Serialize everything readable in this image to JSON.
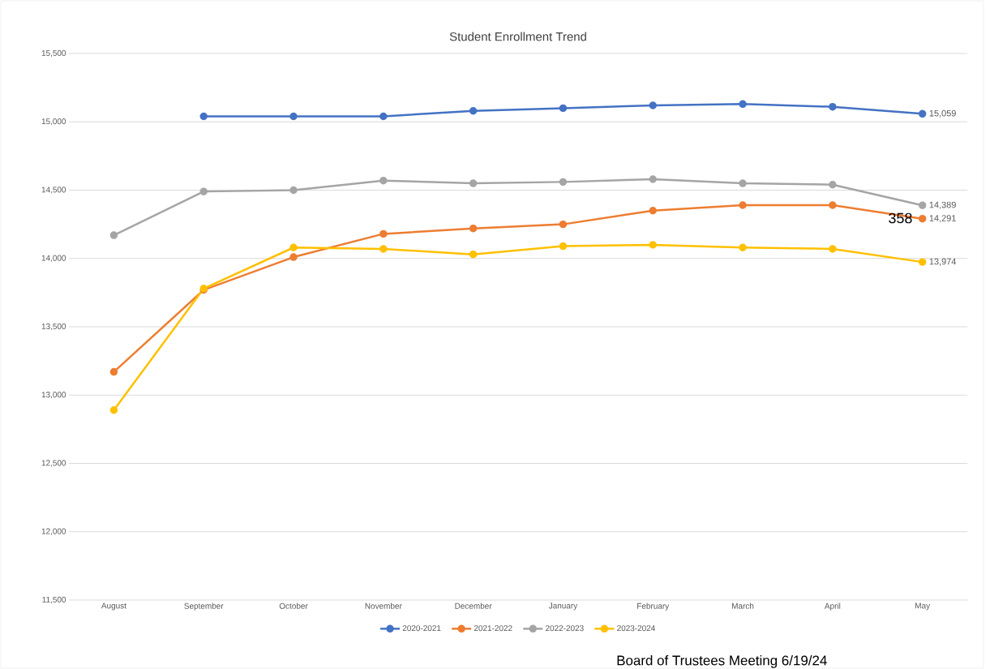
{
  "chart_data": {
    "type": "line",
    "title": "Student Enrollment Trend",
    "categories": [
      "August",
      "September",
      "October",
      "November",
      "December",
      "January",
      "February",
      "March",
      "April",
      "May"
    ],
    "series": [
      {
        "name": "2020-2021",
        "color": "#4472c4",
        "values": [
          null,
          15040,
          15040,
          15040,
          15080,
          15100,
          15120,
          15130,
          15110,
          15059
        ],
        "value_labels": [
          null,
          null,
          null,
          null,
          null,
          null,
          null,
          null,
          null,
          "15,059"
        ]
      },
      {
        "name": "2021-2022",
        "color": "#ed7d31",
        "values": [
          13170,
          13770,
          14010,
          14180,
          14220,
          14250,
          14350,
          14390,
          14390,
          14291
        ],
        "value_labels": [
          null,
          null,
          null,
          null,
          null,
          null,
          null,
          null,
          null,
          "14,291"
        ]
      },
      {
        "name": "2022-2023",
        "color": "#a5a5a5",
        "values": [
          14170,
          14490,
          14500,
          14570,
          14550,
          14560,
          14580,
          14550,
          14540,
          14389
        ],
        "value_labels": [
          null,
          null,
          null,
          null,
          null,
          null,
          null,
          null,
          null,
          "14,389"
        ]
      },
      {
        "name": "2023-2024",
        "color": "#ffc000",
        "values": [
          12890,
          13780,
          14080,
          14070,
          14030,
          14090,
          14100,
          14080,
          14070,
          13974
        ],
        "value_labels": [
          null,
          null,
          null,
          null,
          null,
          null,
          null,
          null,
          null,
          "13,974"
        ]
      }
    ],
    "ylim": [
      11500,
      15500
    ],
    "yticks": [
      {
        "value": 11500,
        "label": "11,500"
      },
      {
        "value": 12000,
        "label": "12,000"
      },
      {
        "value": 12500,
        "label": "12,500"
      },
      {
        "value": 13000,
        "label": "13,000"
      },
      {
        "value": 13500,
        "label": "13,500"
      },
      {
        "value": 14000,
        "label": "14,000"
      },
      {
        "value": 14500,
        "label": "14,500"
      },
      {
        "value": 15000,
        "label": "15,000"
      },
      {
        "value": 15500,
        "label": "15,500"
      }
    ],
    "grid": "y",
    "legend": "bottom",
    "marker": "circle",
    "line_style": "solid",
    "annotations": [
      "Board of Trustees Meeting 6/19/24",
      "358"
    ]
  }
}
